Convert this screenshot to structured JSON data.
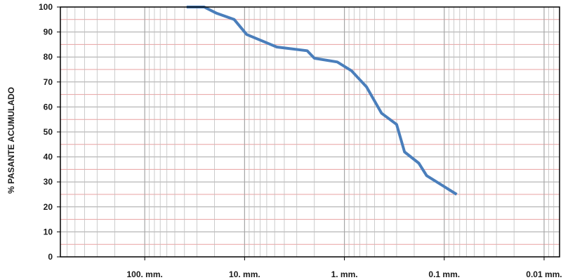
{
  "chart_data": {
    "type": "line",
    "title": "",
    "xlabel": "",
    "ylabel": "% PASANTE ACUMULADO",
    "x_scale": "log",
    "x_direction": "reversed",
    "x_unit": "mm",
    "xlim": [
      700,
      0.007
    ],
    "ylim": [
      0,
      100
    ],
    "grid": true,
    "legend": "none",
    "x_ticks": [
      {
        "value": 100,
        "label": "100. mm."
      },
      {
        "value": 10,
        "label": "10. mm."
      },
      {
        "value": 1,
        "label": "1. mm."
      },
      {
        "value": 0.1,
        "label": "0.1 mm."
      },
      {
        "value": 0.01,
        "label": "0.01 mm."
      }
    ],
    "y_ticks": [
      0,
      10,
      20,
      30,
      40,
      50,
      60,
      70,
      80,
      90,
      100
    ],
    "series": [
      {
        "color": "#4a7ebb",
        "points": [
          {
            "x": 38.1,
            "y": 100
          },
          {
            "x": 25.4,
            "y": 100
          },
          {
            "x": 19.05,
            "y": 97.5
          },
          {
            "x": 12.7,
            "y": 95
          },
          {
            "x": 9.525,
            "y": 89
          },
          {
            "x": 4.75,
            "y": 84
          },
          {
            "x": 2.36,
            "y": 82.5
          },
          {
            "x": 2.0,
            "y": 79.5
          },
          {
            "x": 1.18,
            "y": 78
          },
          {
            "x": 0.85,
            "y": 74.5
          },
          {
            "x": 0.6,
            "y": 68
          },
          {
            "x": 0.425,
            "y": 57.5
          },
          {
            "x": 0.3,
            "y": 53
          },
          {
            "x": 0.25,
            "y": 42
          },
          {
            "x": 0.18,
            "y": 37.5
          },
          {
            "x": 0.15,
            "y": 32.5
          },
          {
            "x": 0.075,
            "y": 25
          }
        ]
      }
    ]
  },
  "style": {
    "line_color": "#4a7ebb",
    "grid_major_color": "#a6a6a6",
    "grid_minor_color": "#bfbfbf",
    "grid_pink_color": "#e8a0a0",
    "frame_color": "#000000"
  }
}
